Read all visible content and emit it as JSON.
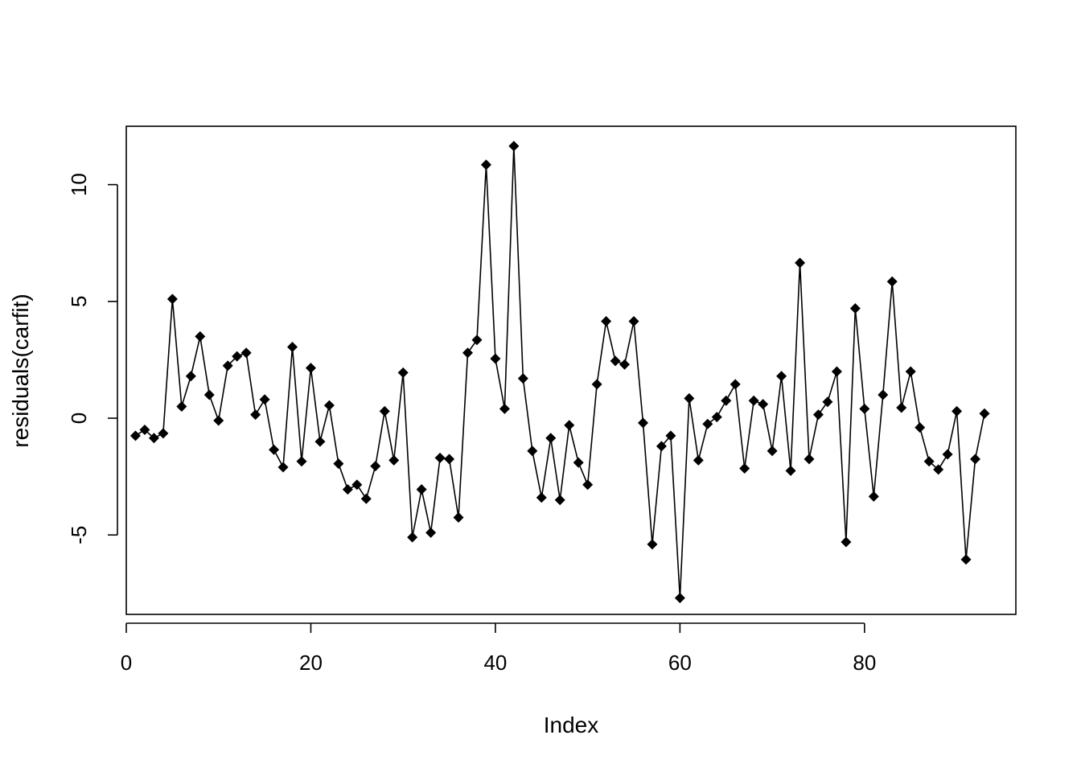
{
  "chart_data": {
    "type": "line",
    "title": "",
    "xlabel": "Index",
    "ylabel": "residuals(carfit)",
    "xlim": [
      0,
      96.4
    ],
    "ylim": [
      -8.4,
      12.5
    ],
    "xticks": [
      0,
      20,
      40,
      60,
      80
    ],
    "yticks": [
      -5,
      0,
      5,
      10
    ],
    "grid": false,
    "legend": "none",
    "marker": "filled-diamond",
    "line_color": "#000000",
    "series": [
      {
        "x": [
          1,
          2,
          3,
          4,
          5,
          6,
          7,
          8,
          9,
          10,
          11,
          12,
          13,
          14,
          15,
          16,
          17,
          18,
          19,
          20,
          21,
          22,
          23,
          24,
          25,
          26,
          27,
          28,
          29,
          30,
          31,
          32,
          33,
          34,
          35,
          36,
          37,
          38,
          39,
          40,
          41,
          42,
          43,
          44,
          45,
          46,
          47,
          48,
          49,
          50,
          51,
          52,
          53,
          54,
          55,
          56,
          57,
          58,
          59,
          60,
          61,
          62,
          63,
          64,
          65,
          66,
          67,
          68,
          69,
          70,
          71,
          72,
          73,
          74,
          75,
          76,
          77,
          78,
          79,
          80,
          81,
          82,
          83,
          84,
          85,
          86,
          87,
          88,
          89,
          90,
          91,
          92,
          93
        ],
        "values": [
          -0.75,
          -0.5,
          -0.85,
          -0.65,
          5.1,
          0.5,
          1.8,
          3.5,
          1.0,
          -0.1,
          2.25,
          2.65,
          2.8,
          0.15,
          0.8,
          -1.35,
          -2.1,
          3.05,
          -1.85,
          2.15,
          -1.0,
          0.55,
          -1.95,
          -3.05,
          -2.85,
          -3.45,
          -2.05,
          0.3,
          -1.8,
          1.95,
          -5.1,
          -3.05,
          -4.9,
          -1.7,
          -1.75,
          -4.25,
          2.8,
          3.35,
          10.85,
          2.55,
          0.4,
          11.65,
          1.7,
          -1.4,
          -3.4,
          -0.85,
          -3.5,
          -0.3,
          -1.9,
          -2.85,
          1.45,
          4.15,
          2.45,
          2.3,
          4.15,
          -0.2,
          -5.4,
          -1.2,
          -0.75,
          -7.7,
          0.85,
          -1.8,
          -0.25,
          0.05,
          0.75,
          1.45,
          -2.15,
          0.75,
          0.6,
          -1.4,
          1.8,
          -2.25,
          6.65,
          -1.75,
          0.15,
          0.7,
          2.0,
          -5.3,
          4.7,
          0.4,
          -3.35,
          1.0,
          5.85,
          0.45,
          2.0,
          -0.4,
          -1.85,
          -2.2,
          -1.55,
          0.3,
          -6.05,
          -1.75,
          0.2
        ]
      }
    ]
  }
}
